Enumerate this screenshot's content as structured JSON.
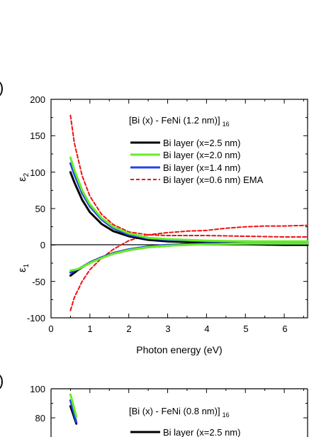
{
  "chart_data": [
    {
      "type": "line",
      "panel_letter": ")",
      "title": "[Bi (x) - FeNi (1.2 nm)]",
      "title_subscript": "16",
      "xlabel": "Photon energy (eV)",
      "ylabel_top": "ε",
      "ylabel_top_sub": "2",
      "ylabel_bottom": "ε",
      "ylabel_bottom_sub": "1",
      "xlim": [
        0,
        6.6
      ],
      "ylim": [
        -100,
        200
      ],
      "x_ticks": [
        "0",
        "1",
        "2",
        "3",
        "4",
        "5",
        "6"
      ],
      "y_ticks": [
        "-100",
        "-50",
        "0",
        "50",
        "100",
        "150",
        "200"
      ],
      "legend_position": "top-right",
      "series": [
        {
          "name": "Bi layer (x=2.5 nm)",
          "color": "#000000",
          "style": "solid",
          "eps2": {
            "x": [
              0.5,
              0.6,
              0.8,
              1.0,
              1.3,
              1.6,
              2.0,
              2.5,
              3.0,
              3.5,
              4.0,
              5.0,
              6.0,
              6.6
            ],
            "y": [
              100,
              86,
              62,
              45,
              29,
              19,
              12,
              7,
              5,
              4,
              4,
              3,
              3,
              3
            ]
          },
          "eps1": {
            "x": [
              0.5,
              0.7,
              1.0,
              1.3,
              1.6,
              2.0,
              2.5,
              3.0,
              3.5,
              4.0,
              5.0,
              6.0,
              6.6
            ],
            "y": [
              -42,
              -34,
              -24,
              -17,
              -12,
              -7,
              -3,
              -1,
              1,
              1,
              1,
              0,
              0
            ]
          }
        },
        {
          "name": "Bi layer (x=2.0 nm)",
          "color": "#66ee22",
          "style": "solid",
          "eps2": {
            "x": [
              0.5,
              0.6,
              0.8,
              1.0,
              1.3,
              1.6,
              2.0,
              2.5,
              3.0,
              3.5,
              4.0,
              5.0,
              6.0,
              6.6
            ],
            "y": [
              120,
              103,
              75,
              56,
              37,
              25,
              16,
              10,
              8,
              7,
              6,
              5,
              5,
              5
            ]
          },
          "eps1": {
            "x": [
              0.5,
              0.7,
              1.0,
              1.3,
              1.6,
              2.0,
              2.5,
              3.0,
              3.5,
              4.0,
              5.0,
              6.0,
              6.6
            ],
            "y": [
              -35,
              -33,
              -25,
              -18,
              -12,
              -7,
              -3,
              -1,
              0,
              1,
              2,
              2,
              2
            ]
          }
        },
        {
          "name": "Bi layer (x=1.4 nm)",
          "color": "#2244ee",
          "style": "solid",
          "eps2": {
            "x": [
              0.5,
              0.6,
              0.8,
              1.0,
              1.3,
              1.6,
              2.0,
              2.5,
              3.0,
              3.5,
              4.0,
              5.0,
              6.0,
              6.6
            ],
            "y": [
              112,
              97,
              71,
              53,
              35,
              23,
              14,
              9,
              7,
              6,
              5,
              5,
              4,
              4
            ]
          },
          "eps1": {
            "x": [
              0.5,
              0.7,
              1.0,
              1.3,
              1.6,
              2.0,
              2.5,
              3.0,
              3.5,
              4.0,
              5.0,
              6.0,
              6.6
            ],
            "y": [
              -38,
              -33,
              -24,
              -17,
              -11,
              -6,
              -2,
              0,
              1,
              1,
              2,
              2,
              2
            ]
          }
        },
        {
          "name": "Bi layer (x=0.6 nm) EMA",
          "color": "#ee1111",
          "style": "dashed",
          "eps2": {
            "x": [
              0.5,
              0.6,
              0.8,
              1.0,
              1.3,
              1.6,
              2.0,
              2.5,
              3.0,
              3.5,
              4.0,
              5.0,
              6.0,
              6.6
            ],
            "y": [
              178,
              140,
              95,
              67,
              42,
              28,
              18,
              14,
              13,
              13,
              13,
              12,
              11,
              11
            ]
          },
          "eps1": {
            "x": [
              0.5,
              0.6,
              0.8,
              1.0,
              1.3,
              1.6,
              2.0,
              2.5,
              3.0,
              3.5,
              4.0,
              4.5,
              5.0,
              5.5,
              6.0,
              6.6
            ],
            "y": [
              -90,
              -72,
              -50,
              -34,
              -18,
              -6,
              6,
              14,
              17,
              19,
              20,
              23,
              25,
              26,
              26,
              27
            ]
          }
        }
      ]
    },
    {
      "type": "line",
      "panel_letter": ")",
      "title": "[Bi (x) - FeNi (0.8 nm)]",
      "title_subscript": "16",
      "ylim_visible": [
        75,
        100
      ],
      "y_ticks": [
        "100",
        "80"
      ],
      "series": [
        {
          "name": "Bi layer (x=2.5 nm)",
          "color": "#000000",
          "style": "solid",
          "x": [
            0.5,
            0.55,
            0.6,
            0.65
          ],
          "y": [
            88,
            84,
            80,
            76
          ]
        },
        {
          "name": "",
          "color": "#66ee22",
          "style": "solid",
          "x": [
            0.5,
            0.55,
            0.6,
            0.65
          ],
          "y": [
            96,
            91,
            86,
            81
          ]
        },
        {
          "name": "",
          "color": "#2244ee",
          "style": "solid",
          "x": [
            0.5,
            0.55,
            0.6,
            0.65
          ],
          "y": [
            92,
            87,
            82,
            77
          ]
        }
      ]
    }
  ]
}
